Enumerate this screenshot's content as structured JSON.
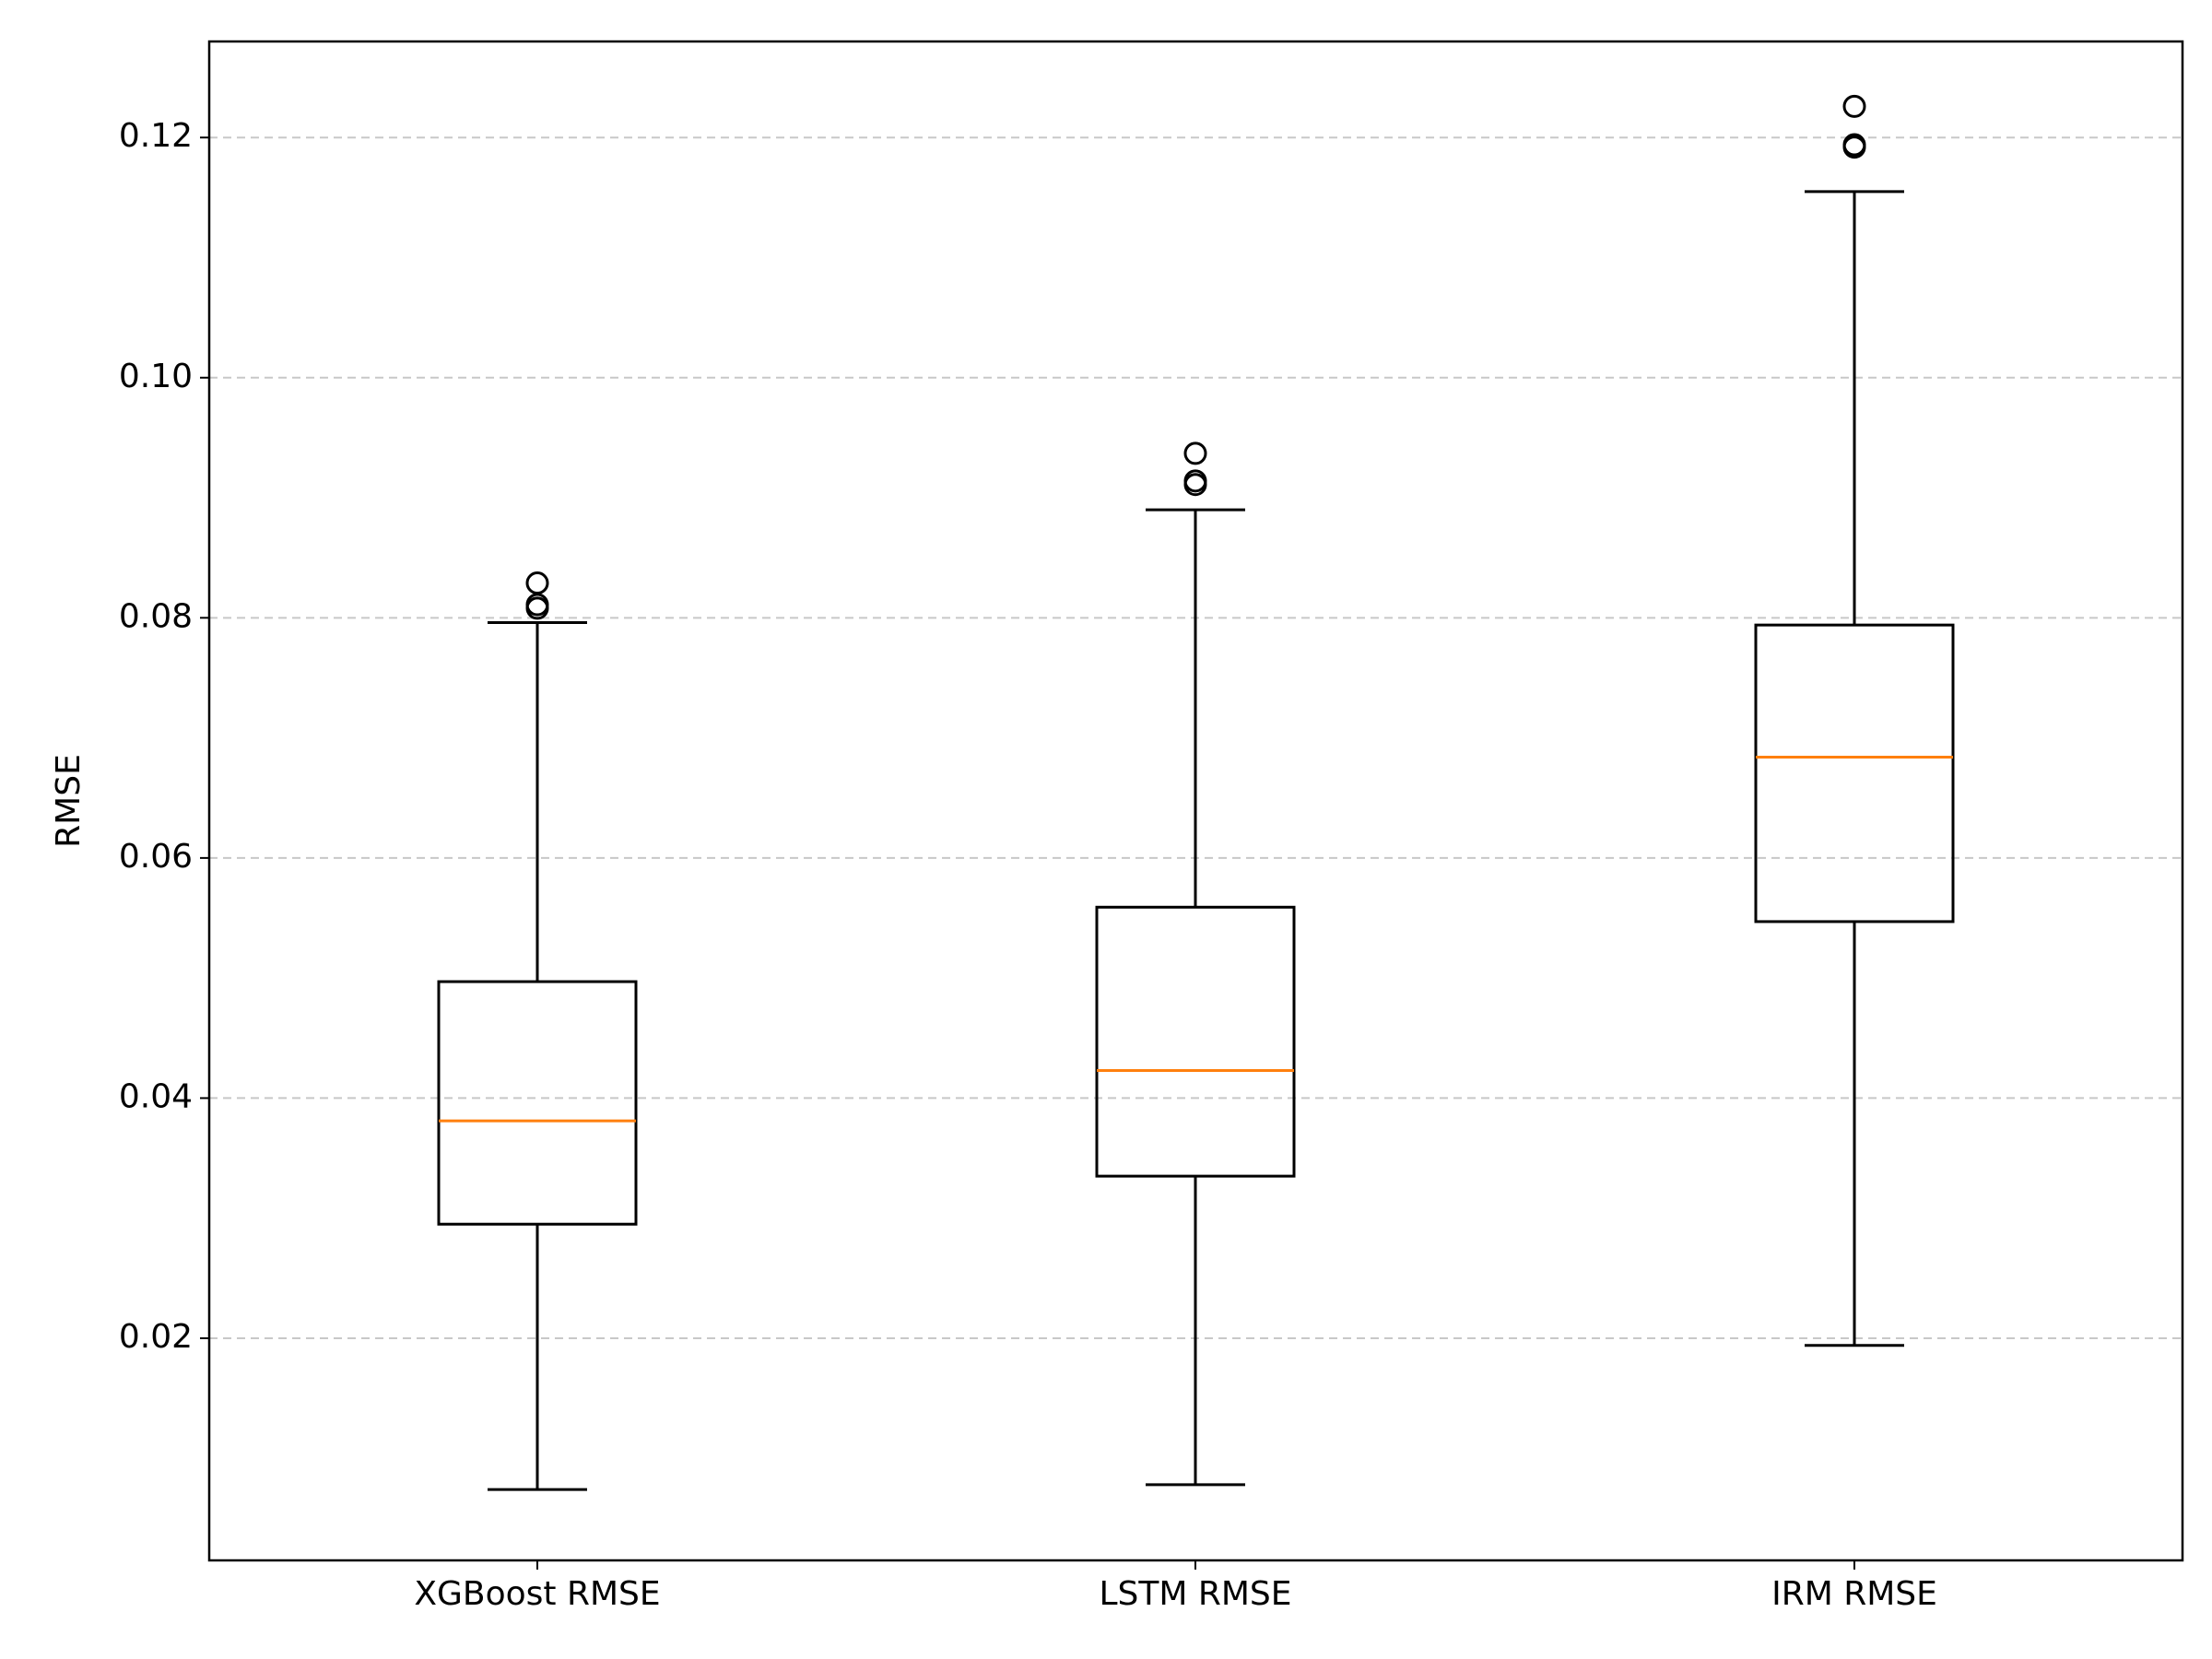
{
  "chart_data": {
    "type": "boxplot",
    "categories": [
      "XGBoost RMSE",
      "LSTM RMSE",
      "IRM RMSE"
    ],
    "ylabel": "RMSE",
    "xlabel": "",
    "ylim": [
      0.0015,
      0.128
    ],
    "yticks": [
      "0.02",
      "0.04",
      "0.06",
      "0.08",
      "0.10",
      "0.12"
    ],
    "grid": "horizontal dashed",
    "series": [
      {
        "category": "XGBoost RMSE",
        "whisker_low": 0.0074,
        "q1": 0.0295,
        "median": 0.0381,
        "q3": 0.0497,
        "whisker_high": 0.0796,
        "outliers": [
          0.0808,
          0.0811,
          0.0829
        ]
      },
      {
        "category": "LSTM RMSE",
        "whisker_low": 0.0078,
        "q1": 0.0335,
        "median": 0.0423,
        "q3": 0.0559,
        "whisker_high": 0.089,
        "outliers": [
          0.0911,
          0.0914,
          0.0937
        ]
      },
      {
        "category": "IRM RMSE",
        "whisker_low": 0.0194,
        "q1": 0.0547,
        "median": 0.0684,
        "q3": 0.0794,
        "whisker_high": 0.1155,
        "outliers": [
          0.1192,
          0.1194,
          0.1226
        ]
      }
    ],
    "colors": {
      "box": "#000000",
      "median": "#ff7f0e",
      "grid": "#c8c8c8"
    }
  }
}
